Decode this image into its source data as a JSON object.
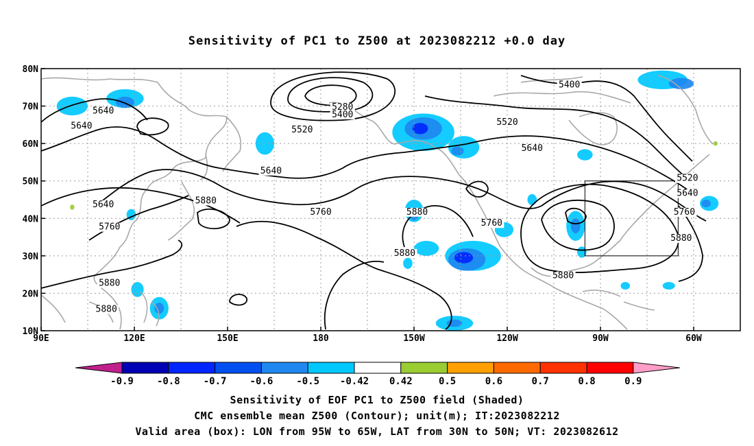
{
  "title": "Sensitivity of PC1 to Z500 at 2023082212 +0.0 day",
  "map": {
    "lat_ticks": [
      "80N",
      "70N",
      "60N",
      "50N",
      "40N",
      "30N",
      "20N",
      "10N"
    ],
    "lon_ticks": [
      "90E",
      "120E",
      "150E",
      "180",
      "150W",
      "120W",
      "90W",
      "60W"
    ],
    "lon_range_deg_east": [
      90,
      315
    ],
    "lat_range_deg": [
      10,
      80
    ],
    "grid": "dotted",
    "coastline_color": "#a0a0a0",
    "contour_color": "#000000",
    "contour_labels": [
      {
        "text": "5640",
        "lon": 110,
        "lat": 68
      },
      {
        "text": "5640",
        "lon": 103,
        "lat": 64
      },
      {
        "text": "5280",
        "lon": 187,
        "lat": 69
      },
      {
        "text": "5400",
        "lon": 187,
        "lat": 67
      },
      {
        "text": "5520",
        "lon": 174,
        "lat": 63
      },
      {
        "text": "5520",
        "lon": 240,
        "lat": 65
      },
      {
        "text": "5400",
        "lon": 260,
        "lat": 75
      },
      {
        "text": "5640",
        "lon": 248,
        "lat": 58
      },
      {
        "text": "5640",
        "lon": 164,
        "lat": 52
      },
      {
        "text": "5640",
        "lon": 110,
        "lat": 43
      },
      {
        "text": "5880",
        "lon": 143,
        "lat": 44
      },
      {
        "text": "5760",
        "lon": 112,
        "lat": 37
      },
      {
        "text": "5760",
        "lon": 180,
        "lat": 41
      },
      {
        "text": "5880",
        "lon": 211,
        "lat": 41
      },
      {
        "text": "5760",
        "lon": 235,
        "lat": 38
      },
      {
        "text": "5880",
        "lon": 207,
        "lat": 30
      },
      {
        "text": "5880",
        "lon": 112,
        "lat": 22
      },
      {
        "text": "5880",
        "lon": 111,
        "lat": 15
      },
      {
        "text": "5880",
        "lon": 258,
        "lat": 24
      },
      {
        "text": "5520",
        "lon": 298,
        "lat": 50
      },
      {
        "text": "5640",
        "lon": 298,
        "lat": 46
      },
      {
        "text": "5760",
        "lon": 297,
        "lat": 41
      },
      {
        "text": "5880",
        "lon": 296,
        "lat": 34
      }
    ],
    "valid_box": {
      "lon_min": 265,
      "lon_max": 295,
      "lat_min": 30,
      "lat_max": 50
    },
    "shading_color_names": [
      "light-blue",
      "blue",
      "dark-blue",
      "green"
    ]
  },
  "colorbar": {
    "labels": [
      "-0.9",
      "-0.8",
      "-0.7",
      "-0.6",
      "-0.5",
      "-0.42",
      "0.42",
      "0.5",
      "0.6",
      "0.7",
      "0.8",
      "0.9"
    ],
    "colors": [
      "#c0208c",
      "#0000b4",
      "#0026ff",
      "#0050f0",
      "#1e88f0",
      "#00c8ff",
      "#ffffff",
      "#9acd32",
      "#ffa000",
      "#ff6a00",
      "#ff3200",
      "#ff0000",
      "#ff9ec8"
    ]
  },
  "captions": [
    "Sensitivity of EOF PC1 to Z500 field (Shaded)",
    "CMC ensemble mean Z500 (Contour); unit(m); IT:2023082212",
    "Valid area (box): LON from 95W to 65W, LAT from 30N to 50N; VT: 2023082612"
  ]
}
